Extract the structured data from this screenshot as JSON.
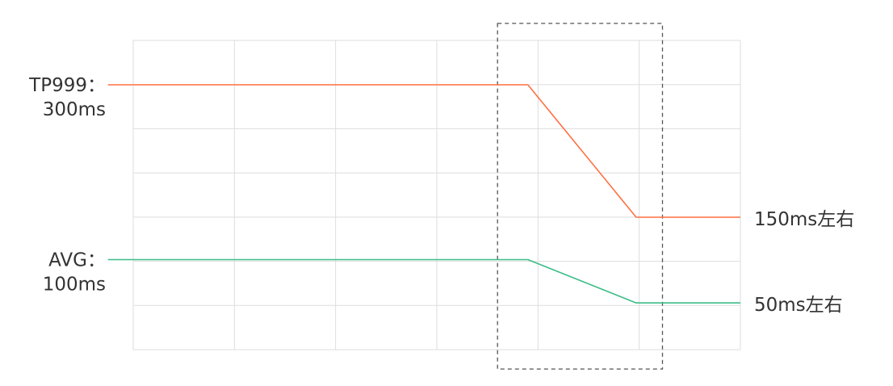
{
  "chart_data": {
    "type": "line",
    "x": [
      0,
      1,
      2,
      3,
      4,
      5,
      6
    ],
    "grid": true,
    "highlight_box": {
      "x_from": 3.6,
      "x_to": 5.23,
      "style": "dashed"
    },
    "series": [
      {
        "key": "tp999",
        "color": "#ff7043",
        "points": [
          [
            -0.25,
            300
          ],
          [
            3.9,
            300
          ],
          [
            4.97,
            150
          ],
          [
            6,
            150
          ]
        ],
        "start_label_lines": [
          "TP999：",
          "300ms"
        ],
        "end_label": "150ms左右"
      },
      {
        "key": "avg",
        "color": "#3dbd88",
        "points": [
          [
            -0.25,
            102
          ],
          [
            3.9,
            102
          ],
          [
            4.97,
            53
          ],
          [
            6,
            53
          ]
        ],
        "start_label_lines": [
          "AVG：",
          "100ms"
        ],
        "end_label": "50ms左右"
      }
    ],
    "ylim": [
      0,
      350
    ],
    "xlabel": "",
    "ylabel": "",
    "title": ""
  }
}
